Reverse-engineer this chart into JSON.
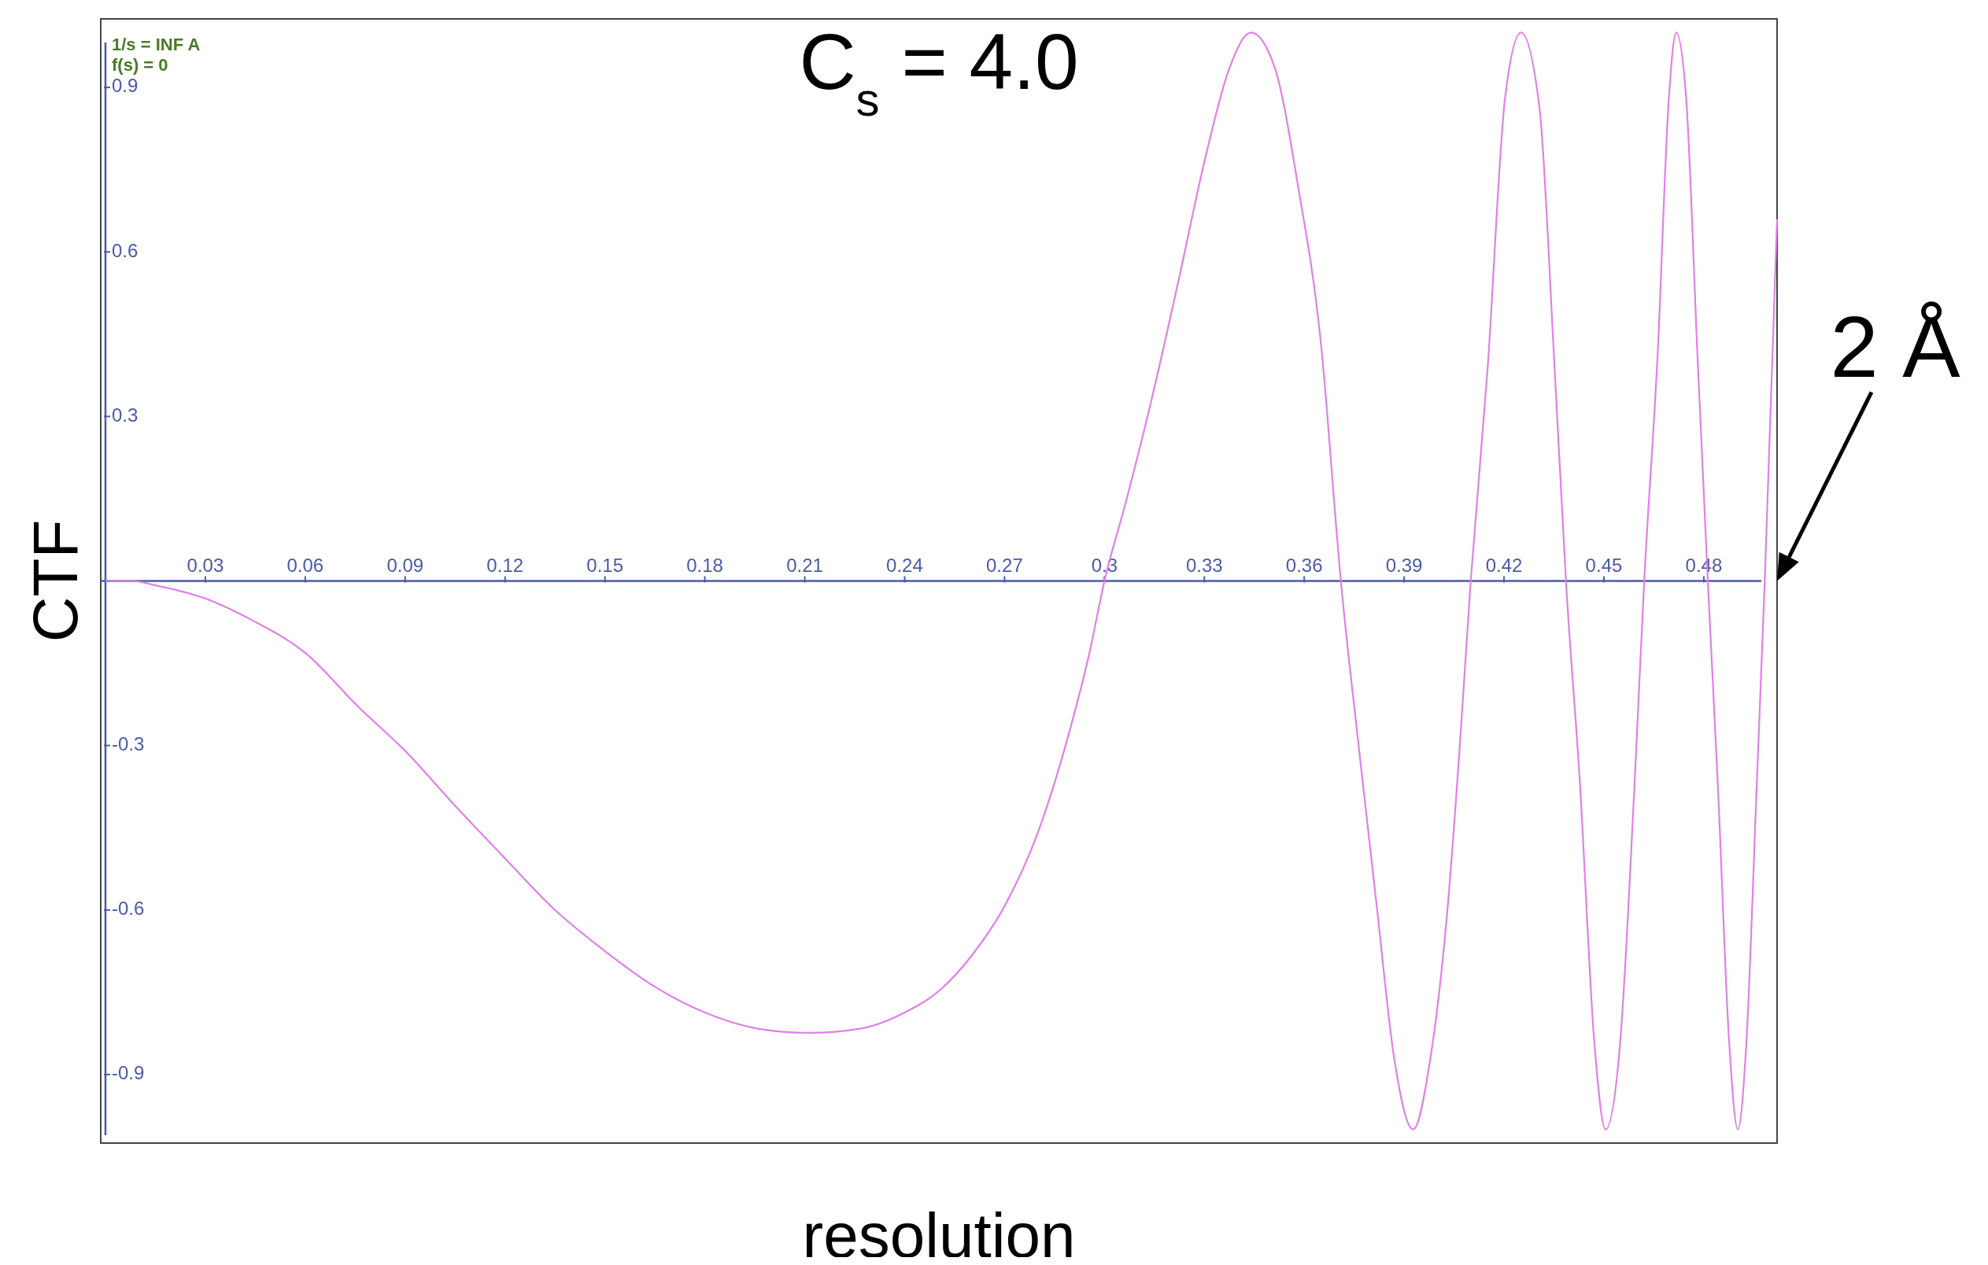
{
  "chart_data": {
    "type": "line",
    "title": "C$_{s}$ = 4.0",
    "xlabel": "resolution",
    "ylabel": "CTF",
    "xlim": [
      0,
      0.502
    ],
    "ylim": [
      -1.025,
      1.025
    ],
    "xticks": [
      0.03,
      0.06,
      0.09,
      0.12,
      0.15,
      0.18,
      0.21,
      0.24,
      0.27,
      0.3,
      0.33,
      0.36,
      0.39,
      0.42,
      0.45,
      0.48
    ],
    "yticks": [
      -0.9,
      -0.6,
      -0.3,
      0.3,
      0.6,
      0.9
    ],
    "marker": "none",
    "line_style": "solid",
    "annotations": [
      "1/s = INF A",
      "f(s) = 0",
      "2 Å"
    ],
    "series": [
      {
        "color": "#e080e8",
        "x": [
          0,
          0.008,
          0.0151,
          0.03,
          0.0445,
          0.06,
          0.076,
          0.09,
          0.105,
          0.12,
          0.135,
          0.15,
          0.165,
          0.18,
          0.1956,
          0.211,
          0.227,
          0.24,
          0.2506,
          0.2604,
          0.27,
          0.28,
          0.2896,
          0.2955,
          0.3,
          0.3064,
          0.3133,
          0.3219,
          0.3305,
          0.3374,
          0.344,
          0.3513,
          0.358,
          0.365,
          0.371,
          0.3767,
          0.3819,
          0.387,
          0.3927,
          0.3979,
          0.403,
          0.4065,
          0.41,
          0.4151,
          0.4203,
          0.4251,
          0.4307,
          0.435,
          0.4386,
          0.4428,
          0.4471,
          0.4505,
          0.4549,
          0.4592,
          0.4621,
          0.4661,
          0.4695,
          0.4717,
          0.4747,
          0.4781,
          0.4812,
          0.4842,
          0.4876,
          0.4902,
          0.4928,
          0.4959,
          0.4983,
          0.502
        ],
        "values": [
          0,
          0,
          -0.008,
          -0.032,
          -0.073,
          -0.131,
          -0.23,
          -0.31,
          -0.41,
          -0.506,
          -0.6,
          -0.675,
          -0.74,
          -0.787,
          -0.816,
          -0.824,
          -0.816,
          -0.787,
          -0.746,
          -0.681,
          -0.593,
          -0.459,
          -0.272,
          -0.131,
          0,
          0.143,
          0.309,
          0.538,
          0.777,
          0.933,
          1.0,
          0.933,
          0.725,
          0.434,
          0,
          -0.32,
          -0.6,
          -0.87,
          -1.0,
          -0.87,
          -0.6,
          -0.32,
          0,
          0.39,
          0.88,
          1.0,
          0.86,
          0.41,
          0,
          -0.37,
          -0.84,
          -1.0,
          -0.84,
          -0.37,
          0,
          0.41,
          0.88,
          1.0,
          0.88,
          0.41,
          0,
          -0.37,
          -0.84,
          -1.0,
          -0.84,
          -0.37,
          0,
          0.66
        ]
      }
    ]
  }
}
